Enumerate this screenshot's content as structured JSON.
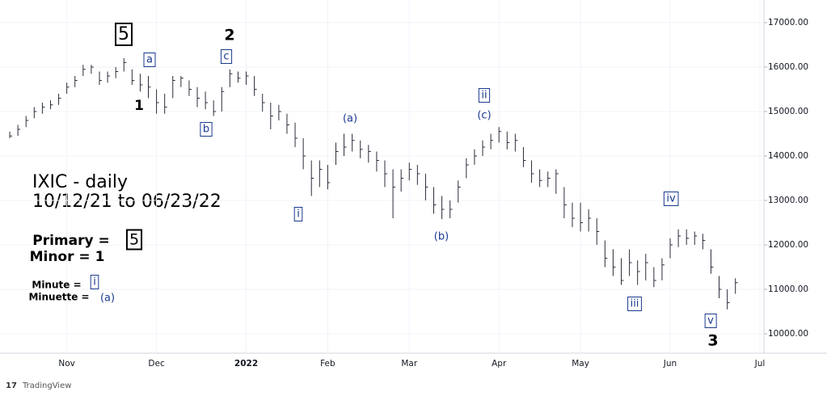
{
  "chart_data": {
    "type": "hlc",
    "title": "IXIC - daily",
    "subtitle": "10/12/21 to 06/23/22",
    "source": "TradingView",
    "color": "#2a2e39",
    "grid": true,
    "categories": [
      null,
      null,
      null,
      null,
      null,
      null,
      null,
      "Nov",
      null,
      null,
      null,
      null,
      null,
      null,
      null,
      null,
      null,
      null,
      "Dec",
      null,
      null,
      null,
      null,
      null,
      null,
      null,
      null,
      null,
      null,
      "2022",
      null,
      null,
      null,
      null,
      null,
      null,
      null,
      null,
      null,
      "Feb",
      null,
      null,
      null,
      null,
      null,
      null,
      null,
      null,
      null,
      "Mar",
      null,
      null,
      null,
      null,
      null,
      null,
      null,
      null,
      null,
      null,
      "Apr",
      null,
      null,
      null,
      null,
      null,
      null,
      null,
      null,
      null,
      "May",
      null,
      null,
      null,
      null,
      null,
      null,
      null,
      null,
      null,
      null,
      "Jun",
      null,
      null,
      null,
      null,
      null,
      null,
      null,
      null,
      null,
      null,
      "Jul"
    ],
    "series": [
      {
        "name": "high",
        "values": [
          14550,
          14700,
          14900,
          15100,
          15200,
          15250,
          15400,
          15650,
          15800,
          16050,
          16050,
          15900,
          15900,
          16000,
          16200,
          15950,
          15850,
          15800,
          15500,
          15400,
          15800,
          15800,
          15700,
          15550,
          15450,
          15250,
          15550,
          15950,
          15900,
          15900,
          15800,
          15400,
          15200,
          15150,
          14950,
          14750,
          14400,
          13900,
          13900,
          13800,
          14300,
          14500,
          14500,
          14350,
          14250,
          14100,
          13900,
          13700,
          13700,
          13850,
          13800,
          13600,
          13300,
          13100,
          13000,
          13450,
          13950,
          14150,
          14350,
          14500,
          14650,
          14550,
          14500,
          14200,
          13900,
          13700,
          13650,
          13700,
          13300,
          12950,
          12950,
          12800,
          12600,
          12100,
          11900,
          11700,
          11900,
          11650,
          11800,
          11500,
          11700,
          12150,
          12350,
          12350,
          12300,
          12250,
          11900,
          11300,
          11000,
          11250,
          null,
          null,
          null
        ]
      },
      {
        "name": "low",
        "values": [
          14400,
          14450,
          14650,
          14850,
          14950,
          15050,
          15150,
          15400,
          15550,
          15800,
          15850,
          15600,
          15650,
          15750,
          15900,
          15600,
          15450,
          15300,
          14950,
          14950,
          15300,
          15550,
          15350,
          15100,
          15050,
          14900,
          15000,
          15550,
          15650,
          15600,
          15350,
          15000,
          14600,
          14800,
          14500,
          14200,
          13700,
          13100,
          13300,
          13250,
          13800,
          14000,
          14100,
          13950,
          13850,
          13650,
          13300,
          12600,
          13200,
          13450,
          13350,
          13000,
          12700,
          12580,
          12600,
          12950,
          13500,
          13800,
          14000,
          14150,
          14300,
          14150,
          14100,
          13750,
          13400,
          13300,
          13300,
          13150,
          12600,
          12400,
          12300,
          12300,
          12000,
          11500,
          11300,
          11100,
          11300,
          11100,
          11200,
          11050,
          11200,
          11700,
          11950,
          12000,
          12000,
          11900,
          11350,
          10800,
          10550,
          10900,
          null,
          null,
          null
        ]
      },
      {
        "name": "close",
        "values": [
          14450,
          14600,
          14800,
          15000,
          15100,
          15150,
          15300,
          15550,
          15700,
          15950,
          16000,
          15700,
          15800,
          15900,
          16100,
          15700,
          15600,
          15550,
          15200,
          15100,
          15700,
          15750,
          15500,
          15300,
          15200,
          15000,
          15450,
          15850,
          15750,
          15800,
          15500,
          15200,
          14900,
          15000,
          14700,
          14400,
          14000,
          13500,
          13700,
          13400,
          14100,
          14200,
          14350,
          14150,
          14100,
          13900,
          13600,
          13300,
          13500,
          13700,
          13600,
          13300,
          12900,
          12800,
          12800,
          13300,
          13800,
          14000,
          14200,
          14350,
          14550,
          14300,
          14350,
          13900,
          13600,
          13450,
          13500,
          13600,
          12900,
          12600,
          12500,
          12600,
          12300,
          11700,
          11500,
          11200,
          11600,
          11400,
          11600,
          11200,
          11550,
          12000,
          12200,
          12150,
          12200,
          12100,
          11500,
          11000,
          10700,
          11150,
          null,
          null,
          null
        ]
      }
    ],
    "ylim": [
      9564,
      17182
    ],
    "yticks": [
      {
        "value": 10000,
        "label": "10000.00"
      },
      {
        "value": 11000,
        "label": "11000.00"
      },
      {
        "value": 12000,
        "label": "12000.00"
      },
      {
        "value": 13000,
        "label": "13000.00"
      },
      {
        "value": 14000,
        "label": "14000.00"
      },
      {
        "value": 15000,
        "label": "15000.00"
      },
      {
        "value": 16000,
        "label": "16000.00"
      },
      {
        "value": 17000,
        "label": "17000.00"
      }
    ],
    "annotations": [
      {
        "text": "5",
        "color": "#000000",
        "boxed": true
      },
      {
        "text": "a",
        "color": "#1a3a8f",
        "boxed": true
      },
      {
        "text": "2",
        "color": "#000000",
        "boxed": false
      },
      {
        "text": "c",
        "color": "#1a3a8f",
        "boxed": true
      },
      {
        "text": "1",
        "color": "#000000",
        "boxed": false
      },
      {
        "text": "b",
        "color": "#1a3a8f",
        "boxed": true
      },
      {
        "text": "(a)",
        "color": "#1a3a8f",
        "boxed": false
      },
      {
        "text": "i",
        "color": "#1a3a8f",
        "boxed": true
      },
      {
        "text": "ii",
        "color": "#1a3a8f",
        "boxed": true
      },
      {
        "text": "(c)",
        "color": "#1a3a8f",
        "boxed": false
      },
      {
        "text": "(b)",
        "color": "#1a3a8f",
        "boxed": false
      },
      {
        "text": "iv",
        "color": "#1a3a8f",
        "boxed": true
      },
      {
        "text": "iii",
        "color": "#1a3a8f",
        "boxed": true
      },
      {
        "text": "v",
        "color": "#1a3a8f",
        "boxed": true
      },
      {
        "text": "3",
        "color": "#000000",
        "boxed": false
      }
    ],
    "legend_notes": [
      {
        "text": "Primary  =",
        "color": "#000000",
        "boxed": false
      },
      {
        "text": "5",
        "color": "#000000",
        "boxed": true
      },
      {
        "text": "Minor = 1",
        "color": "#000000",
        "boxed": false
      },
      {
        "text": "Minute  =",
        "color": "#000000",
        "boxed": false
      },
      {
        "text": "i",
        "color": "#1a3a8f",
        "boxed": true
      },
      {
        "text": "Minuette =",
        "color": "#000000",
        "boxed": false
      },
      {
        "text": "(a)",
        "color": "#1a3a8f",
        "boxed": false
      }
    ]
  }
}
